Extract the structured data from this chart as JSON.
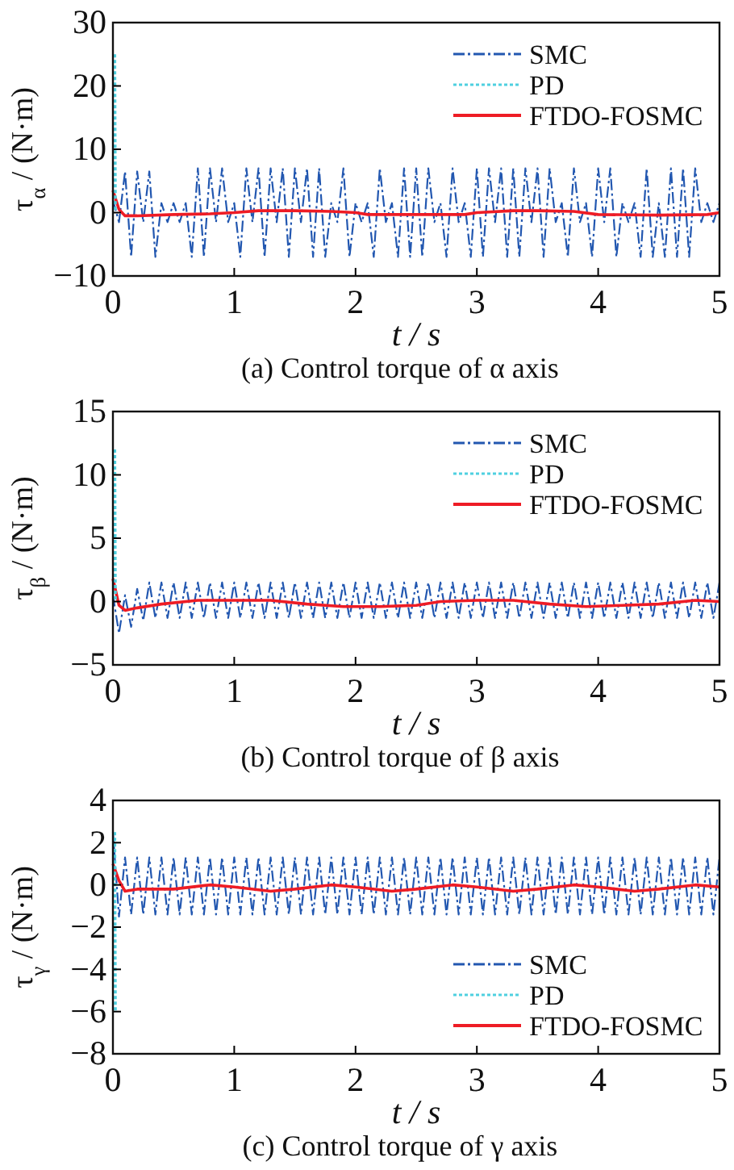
{
  "chart_data": [
    {
      "type": "line",
      "title": "(a) Control torque of α axis",
      "xlabel": "t / s",
      "ylabel": "τ$_{α}$ / (N·m)",
      "xlim": [
        0,
        5
      ],
      "xticks": [
        0,
        1,
        2,
        3,
        4,
        5
      ],
      "ylim": [
        -10,
        30
      ],
      "yticks": [
        -10,
        0,
        10,
        20,
        30
      ],
      "grid": false,
      "legend": "top right",
      "series": [
        {
          "name": "SMC",
          "color": "#2257b0",
          "line_style": "dashed",
          "x": [
            0,
            0.05,
            0.1,
            0.15,
            0.2,
            0.25,
            0.3,
            0.35,
            0.4,
            0.45,
            0.5,
            0.55,
            0.6,
            0.65,
            0.7,
            0.75,
            0.8,
            0.85,
            0.9,
            0.95,
            1,
            1.05,
            1.1,
            1.15,
            1.2,
            1.25,
            1.3,
            1.35,
            1.4,
            1.45,
            1.5,
            1.55,
            1.6,
            1.65,
            1.7,
            1.75,
            1.8,
            1.85,
            1.9,
            1.95,
            2,
            2.05,
            2.1,
            2.15,
            2.2,
            2.25,
            2.3,
            2.35,
            2.4,
            2.45,
            2.5,
            2.55,
            2.6,
            2.65,
            2.7,
            2.75,
            2.8,
            2.85,
            2.9,
            2.95,
            3,
            3.05,
            3.1,
            3.15,
            3.2,
            3.25,
            3.3,
            3.35,
            3.4,
            3.45,
            3.5,
            3.55,
            3.6,
            3.65,
            3.7,
            3.75,
            3.8,
            3.85,
            3.9,
            3.95,
            4,
            4.05,
            4.1,
            4.15,
            4.2,
            4.25,
            4.3,
            4.35,
            4.4,
            4.45,
            4.5,
            4.55,
            4.6,
            4.65,
            4.7,
            4.75,
            4.8,
            4.85,
            4.9,
            4.95,
            5
          ],
          "values": [
            2,
            -1.5,
            6.5,
            -7,
            6.5,
            -1.5,
            6.5,
            -7,
            1.5,
            -1.5,
            1.5,
            -1.5,
            1.5,
            -7,
            7,
            -7,
            7,
            -1.5,
            7,
            -1.5,
            1.5,
            -7,
            7,
            -1.5,
            7,
            -7,
            7,
            -1.5,
            7,
            -7,
            7,
            -1.5,
            7,
            -7,
            7,
            -7,
            1.5,
            -1.5,
            7,
            -7,
            1.5,
            -1.5,
            1.5,
            -7,
            7,
            -1.5,
            1.5,
            -7,
            7,
            -7,
            7,
            -7,
            7,
            -1.5,
            1.5,
            -7,
            7,
            -1.5,
            1.5,
            -7,
            7,
            -7,
            7,
            -1.5,
            7,
            -7,
            7,
            -7,
            7,
            -1.5,
            7,
            -7,
            7,
            -1.5,
            1.5,
            -7,
            7,
            -1.5,
            1.5,
            -7,
            7,
            -1.5,
            7,
            -7,
            1.5,
            -1.5,
            1.5,
            -7,
            7,
            -7,
            1.5,
            -7,
            7,
            -7,
            7,
            -7,
            7,
            -1.5,
            1.5,
            -1.5,
            1.5
          ]
        },
        {
          "name": "PD",
          "color": "#4fd0e0",
          "line_style": "dotted",
          "x": [
            0.015,
            0.02
          ],
          "values": [
            25,
            0
          ]
        },
        {
          "name": "FTDO-FOSMC",
          "color": "#ee1c25",
          "line_style": "solid",
          "x": [
            0,
            0.05,
            0.1,
            0.2,
            0.5,
            0.8,
            1,
            1.2,
            1.5,
            1.8,
            2,
            2.1,
            2.5,
            2.9,
            3,
            3.3,
            3.5,
            3.8,
            4,
            4.5,
            4.9,
            5
          ],
          "values": [
            3.5,
            0.5,
            -0.5,
            -0.5,
            -0.3,
            -0.2,
            0,
            0.3,
            0.3,
            0.2,
            0,
            -0.3,
            -0.3,
            -0.3,
            0,
            0.3,
            0.3,
            0.2,
            -0.3,
            -0.4,
            -0.3,
            0
          ]
        }
      ]
    },
    {
      "type": "line",
      "title": "(b) Control torque of β axis",
      "xlabel": "t / s",
      "ylabel": "τ$_{β}$ / (N·m)",
      "xlim": [
        0,
        5
      ],
      "xticks": [
        0,
        1,
        2,
        3,
        4,
        5
      ],
      "ylim": [
        -5,
        15
      ],
      "yticks": [
        -5,
        0,
        5,
        10,
        15
      ],
      "grid": false,
      "legend": "top right",
      "series": [
        {
          "name": "SMC",
          "color": "#2257b0",
          "line_style": "dashed",
          "x": [
            0,
            0.05,
            0.1,
            0.15,
            0.2,
            0.25,
            0.3,
            0.35,
            0.4,
            0.45,
            0.5,
            0.55,
            0.6,
            0.65,
            0.7,
            0.75,
            0.8,
            0.85,
            0.9,
            0.95,
            1,
            1.05,
            1.1,
            1.15,
            1.2,
            1.25,
            1.3,
            1.35,
            1.4,
            1.45,
            1.5,
            1.55,
            1.6,
            1.65,
            1.7,
            1.75,
            1.8,
            1.85,
            1.9,
            1.95,
            2,
            2.05,
            2.1,
            2.15,
            2.2,
            2.25,
            2.3,
            2.35,
            2.4,
            2.45,
            2.5,
            2.55,
            2.6,
            2.65,
            2.7,
            2.75,
            2.8,
            2.85,
            2.9,
            2.95,
            3,
            3.05,
            3.1,
            3.15,
            3.2,
            3.25,
            3.3,
            3.35,
            3.4,
            3.45,
            3.5,
            3.55,
            3.6,
            3.65,
            3.7,
            3.75,
            3.8,
            3.85,
            3.9,
            3.95,
            4,
            4.05,
            4.1,
            4.15,
            4.2,
            4.25,
            4.3,
            4.35,
            4.4,
            4.45,
            4.5,
            4.55,
            4.6,
            4.65,
            4.7,
            4.75,
            4.8,
            4.85,
            4.9,
            4.95,
            5
          ],
          "values": [
            0.5,
            -2.5,
            0.5,
            -2,
            1,
            -1.5,
            1.5,
            -1.3,
            1.5,
            -1.3,
            1.5,
            -1.3,
            1.5,
            -1.3,
            1.5,
            -1.3,
            1.5,
            -1.3,
            1.5,
            -1.3,
            1.5,
            -1.3,
            1.5,
            -1.3,
            1.5,
            -1.3,
            1.5,
            -1.3,
            1.5,
            -1.3,
            1.5,
            -1.3,
            1.5,
            -1.3,
            1.5,
            -1.3,
            1.5,
            -1.3,
            1.5,
            -1.3,
            1.5,
            -1.3,
            1.5,
            -1.3,
            1.5,
            -1.3,
            1.5,
            -1.3,
            1.5,
            -1.3,
            1.5,
            -1.3,
            1.5,
            -1.3,
            1.5,
            -1.3,
            1.5,
            -1.3,
            1.5,
            -1.3,
            1.5,
            -1.3,
            1.5,
            -1.3,
            1.5,
            -1.3,
            1.5,
            -1.3,
            1.5,
            -1.3,
            1.5,
            -1.3,
            1.5,
            -1.3,
            1.5,
            -1.3,
            1.5,
            -1.3,
            1.5,
            -1.3,
            1.5,
            -1.3,
            1.5,
            -1.3,
            1.5,
            -1.3,
            1.5,
            -1.3,
            1.5,
            -1.3,
            1.5,
            -1.3,
            1.5,
            -1.3,
            1.5,
            -1.3,
            1.5,
            -1.3,
            1.5,
            -1.3,
            1.5
          ]
        },
        {
          "name": "PD",
          "color": "#4fd0e0",
          "line_style": "dotted",
          "x": [
            0.015,
            0.02
          ],
          "values": [
            12,
            0
          ]
        },
        {
          "name": "FTDO-FOSMC",
          "color": "#ee1c25",
          "line_style": "solid",
          "x": [
            0,
            0.05,
            0.1,
            0.2,
            0.4,
            0.7,
            1,
            1.3,
            1.6,
            1.9,
            2.2,
            2.5,
            2.7,
            3,
            3.3,
            3.6,
            3.9,
            4.2,
            4.5,
            4.8,
            5
          ],
          "values": [
            1.8,
            -0.3,
            -0.7,
            -0.5,
            -0.2,
            0.1,
            0.1,
            0.1,
            -0.2,
            -0.4,
            -0.4,
            -0.3,
            0,
            0.1,
            0.1,
            -0.2,
            -0.4,
            -0.3,
            -0.2,
            0.1,
            0
          ]
        }
      ]
    },
    {
      "type": "line",
      "title": "(c) Control torque of γ axis",
      "xlabel": "t / s",
      "ylabel": "τ$_{γ}$ / (N·m)",
      "xlim": [
        0,
        5
      ],
      "xticks": [
        0,
        1,
        2,
        3,
        4,
        5
      ],
      "ylim": [
        -8,
        4
      ],
      "yticks": [
        -8,
        -6,
        -4,
        -2,
        0,
        2,
        4
      ],
      "grid": false,
      "legend": "bottom right",
      "series": [
        {
          "name": "SMC",
          "color": "#2257b0",
          "line_style": "dashed",
          "x": [
            0,
            0.05,
            0.1,
            0.15,
            0.2,
            0.25,
            0.3,
            0.35,
            0.4,
            0.45,
            0.5,
            0.55,
            0.6,
            0.65,
            0.7,
            0.75,
            0.8,
            0.85,
            0.9,
            0.95,
            1,
            1.05,
            1.1,
            1.15,
            1.2,
            1.25,
            1.3,
            1.35,
            1.4,
            1.45,
            1.5,
            1.55,
            1.6,
            1.65,
            1.7,
            1.75,
            1.8,
            1.85,
            1.9,
            1.95,
            2,
            2.05,
            2.1,
            2.15,
            2.2,
            2.25,
            2.3,
            2.35,
            2.4,
            2.45,
            2.5,
            2.55,
            2.6,
            2.65,
            2.7,
            2.75,
            2.8,
            2.85,
            2.9,
            2.95,
            3,
            3.05,
            3.1,
            3.15,
            3.2,
            3.25,
            3.3,
            3.35,
            3.4,
            3.45,
            3.5,
            3.55,
            3.6,
            3.65,
            3.7,
            3.75,
            3.8,
            3.85,
            3.9,
            3.95,
            4,
            4.05,
            4.1,
            4.15,
            4.2,
            4.25,
            4.3,
            4.35,
            4.4,
            4.45,
            4.5,
            4.55,
            4.6,
            4.65,
            4.7,
            4.75,
            4.8,
            4.85,
            4.9,
            4.95,
            5
          ],
          "values": [
            2.5,
            -1.5,
            1.3,
            -1.4,
            1.3,
            -1.4,
            1.3,
            -1.4,
            1.3,
            -1.4,
            1.3,
            -1.4,
            1.3,
            -1.4,
            1.3,
            -1.4,
            1.3,
            -1.4,
            1.3,
            -1.4,
            1.3,
            -1.4,
            1.3,
            -1.4,
            1.3,
            -1.4,
            1.3,
            -1.4,
            1.3,
            -1.4,
            1.3,
            -1.4,
            1.3,
            -1.4,
            1.3,
            -1.4,
            1.3,
            -1.4,
            1.3,
            -1.4,
            1.3,
            -1.4,
            1.3,
            -1.4,
            1.3,
            -1.4,
            1.3,
            -1.4,
            1.3,
            -1.4,
            1.3,
            -1.4,
            1.3,
            -1.4,
            1.3,
            -1.4,
            1.3,
            -1.4,
            1.3,
            -1.4,
            1.3,
            -1.4,
            1.3,
            -1.4,
            1.3,
            -1.4,
            1.3,
            -1.4,
            1.3,
            -1.4,
            1.3,
            -1.4,
            1.3,
            -1.4,
            1.3,
            -1.4,
            1.3,
            -1.4,
            1.3,
            -1.4,
            1.3,
            -1.4,
            1.3,
            -1.4,
            1.3,
            -1.4,
            1.3,
            -1.4,
            1.3,
            -1.4,
            1.3,
            -1.4,
            1.3,
            -1.4,
            1.3,
            -1.4,
            1.3,
            -1.4,
            1.3,
            -1.4,
            1.3
          ]
        },
        {
          "name": "PD",
          "color": "#4fd0e0",
          "line_style": "dotted",
          "x": [
            0.015,
            0.02
          ],
          "values": [
            2.5,
            -6
          ]
        },
        {
          "name": "FTDO-FOSMC",
          "color": "#ee1c25",
          "line_style": "solid",
          "x": [
            0,
            0.05,
            0.1,
            0.2,
            0.5,
            0.8,
            1,
            1.3,
            1.5,
            1.8,
            2,
            2.3,
            2.5,
            2.8,
            3,
            3.3,
            3.5,
            3.8,
            4,
            4.3,
            4.5,
            4.8,
            5
          ],
          "values": [
            1,
            0.2,
            -0.3,
            -0.2,
            -0.2,
            0,
            -0.1,
            -0.3,
            -0.2,
            0,
            -0.1,
            -0.3,
            -0.2,
            0,
            -0.1,
            -0.3,
            -0.2,
            0,
            -0.1,
            -0.3,
            -0.2,
            0,
            -0.1
          ]
        }
      ]
    }
  ]
}
